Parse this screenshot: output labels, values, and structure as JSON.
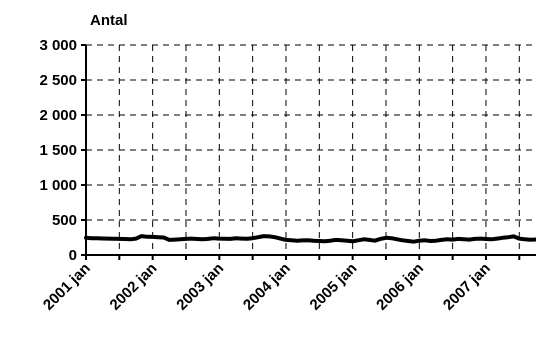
{
  "chart_data": {
    "type": "line",
    "ylabel": "Antal",
    "ylim": [
      0,
      3000
    ],
    "y_ticks": [
      0,
      500,
      1000,
      1500,
      2000,
      2500,
      3000
    ],
    "y_tick_labels": [
      "0",
      "500",
      "1 000",
      "1 500",
      "2 000",
      "2 500",
      "3 000"
    ],
    "x_tick_labels": [
      "2001 jan",
      "2002 jan",
      "2003 jan",
      "2004 jan",
      "2005 jan",
      "2006 jan",
      "2007 jan"
    ],
    "grid": true,
    "legend": "none",
    "series": [
      {
        "color": "#000000",
        "values": [
          245,
          240,
          238,
          236,
          235,
          232,
          230,
          228,
          225,
          235,
          270,
          260,
          258,
          255,
          250,
          215,
          220,
          225,
          230,
          235,
          228,
          225,
          230,
          240,
          235,
          232,
          230,
          238,
          235,
          232,
          240,
          255,
          270,
          265,
          255,
          235,
          215,
          210,
          205,
          208,
          212,
          205,
          200,
          195,
          205,
          215,
          210,
          205,
          195,
          210,
          225,
          215,
          205,
          230,
          245,
          240,
          225,
          210,
          200,
          190,
          205,
          210,
          200,
          205,
          215,
          225,
          220,
          230,
          225,
          220,
          230,
          235,
          228,
          225,
          235,
          245,
          255,
          265,
          235,
          225,
          218,
          222,
          220,
          212,
          215,
          218,
          220,
          215,
          210,
          205,
          210,
          218,
          222,
          215,
          205,
          200,
          198,
          195,
          200,
          205,
          195,
          190,
          180,
          178,
          182,
          175,
          168,
          165,
          170,
          175,
          180,
          185,
          188,
          185,
          180,
          178,
          190,
          192,
          185,
          175,
          172,
          170,
          168,
          165,
          160,
          158,
          162,
          160,
          158,
          155,
          150,
          145,
          140,
          135,
          130,
          125,
          128,
          130,
          135,
          132,
          128,
          130,
          134,
          138,
          140,
          138,
          135,
          134,
          133,
          130,
          132,
          135,
          138,
          136,
          134,
          132
        ]
      }
    ]
  }
}
